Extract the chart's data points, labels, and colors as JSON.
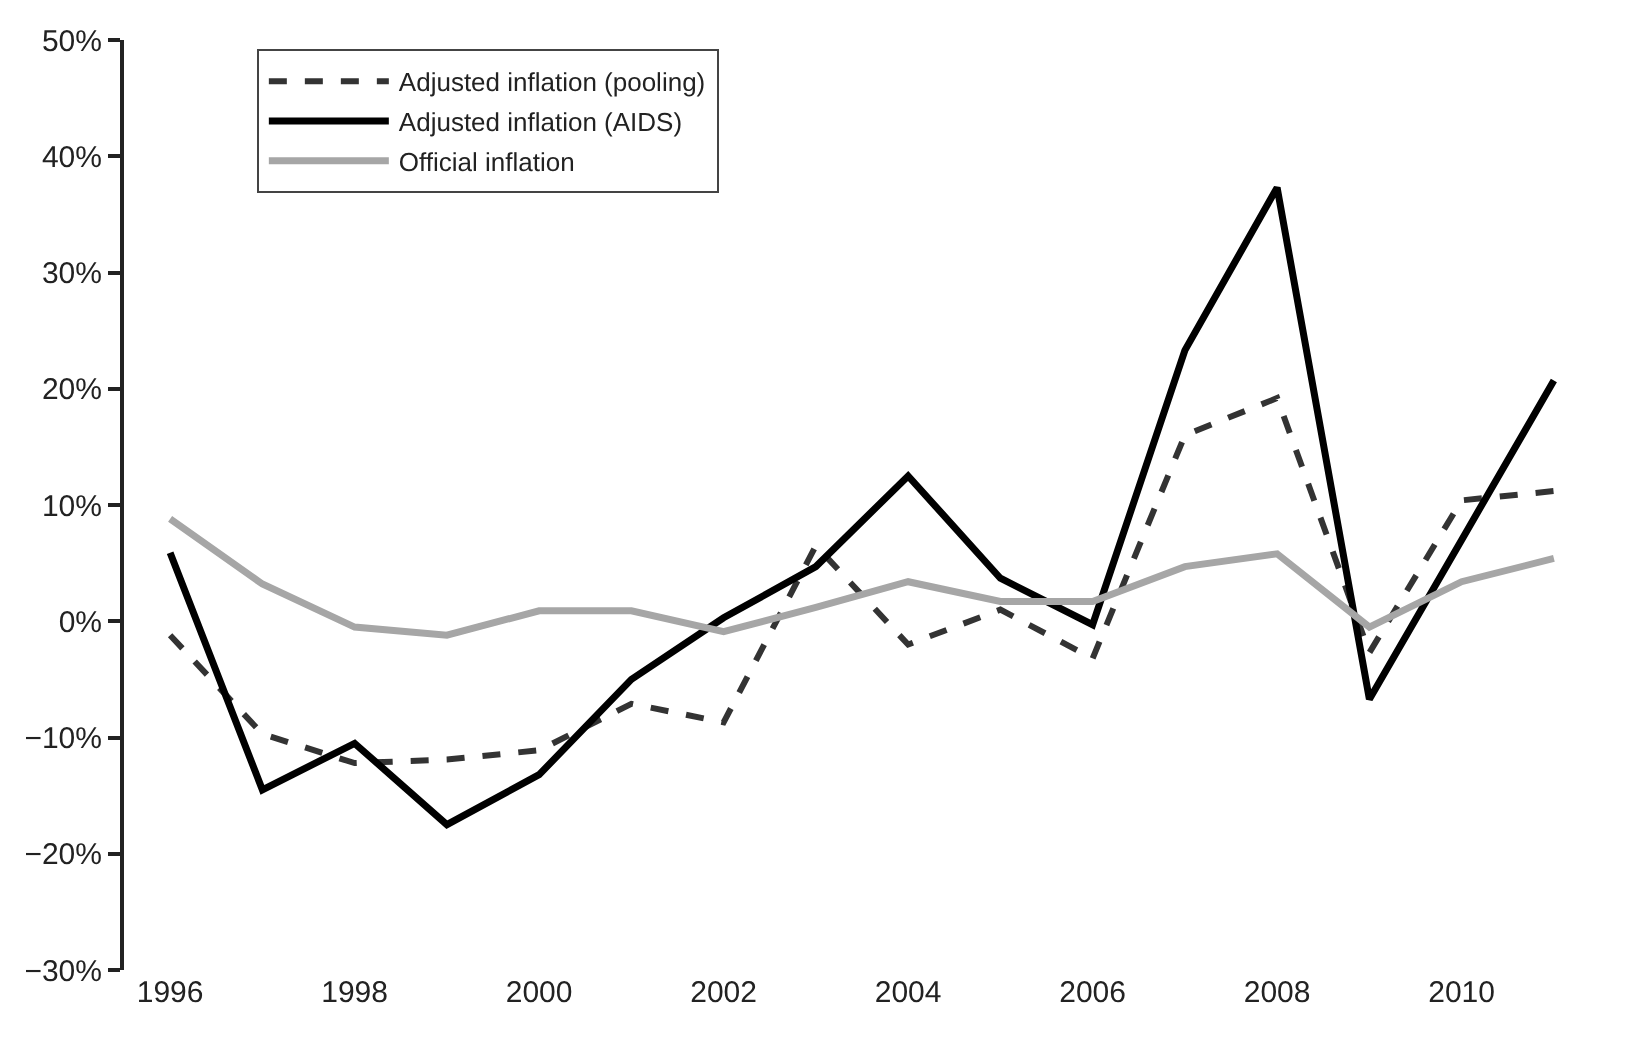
{
  "chart_data": {
    "type": "line",
    "categories": [
      "1996",
      null,
      "1998",
      null,
      "2000",
      null,
      "2002",
      null,
      "2004",
      null,
      "2006",
      null,
      "2008",
      null,
      "2010",
      null
    ],
    "series": [
      {
        "name": "Adjusted inflation (pooling)",
        "color": "#333333",
        "line_style": "dashed",
        "values": [
          -1.2,
          -9.7,
          -12.2,
          -11.9,
          -11.1,
          -7.1,
          -8.7,
          6.5,
          -2.0,
          1.0,
          -3.2,
          16.0,
          19.2,
          -2.7,
          10.4,
          11.2
        ]
      },
      {
        "name": "Adjusted inflation (AIDS)",
        "color": "#000000",
        "line_style": "solid",
        "values": [
          5.9,
          -14.5,
          -10.5,
          -17.5,
          -13.2,
          -5.0,
          0.3,
          4.7,
          12.5,
          3.7,
          -0.3,
          23.3,
          37.3,
          -6.7,
          7.0,
          20.7
        ]
      },
      {
        "name": "Official inflation",
        "color": "#a6a6a6",
        "line_style": "solid",
        "values": [
          8.8,
          3.2,
          -0.5,
          -1.2,
          0.9,
          0.9,
          -0.9,
          1.2,
          3.4,
          1.7,
          1.7,
          4.7,
          5.8,
          -0.5,
          3.4,
          5.4
        ]
      }
    ],
    "ylim": [
      -30,
      50
    ],
    "yticks": [
      {
        "value": -30,
        "label": "−30%"
      },
      {
        "value": -20,
        "label": "−20%"
      },
      {
        "value": -10,
        "label": "−10%"
      },
      {
        "value": 0,
        "label": "0%"
      },
      {
        "value": 10,
        "label": "10%"
      },
      {
        "value": 20,
        "label": "20%"
      },
      {
        "value": 30,
        "label": "30%"
      },
      {
        "value": 40,
        "label": "40%"
      },
      {
        "value": 50,
        "label": "50%"
      }
    ],
    "legend": "top left",
    "marker": "none"
  }
}
